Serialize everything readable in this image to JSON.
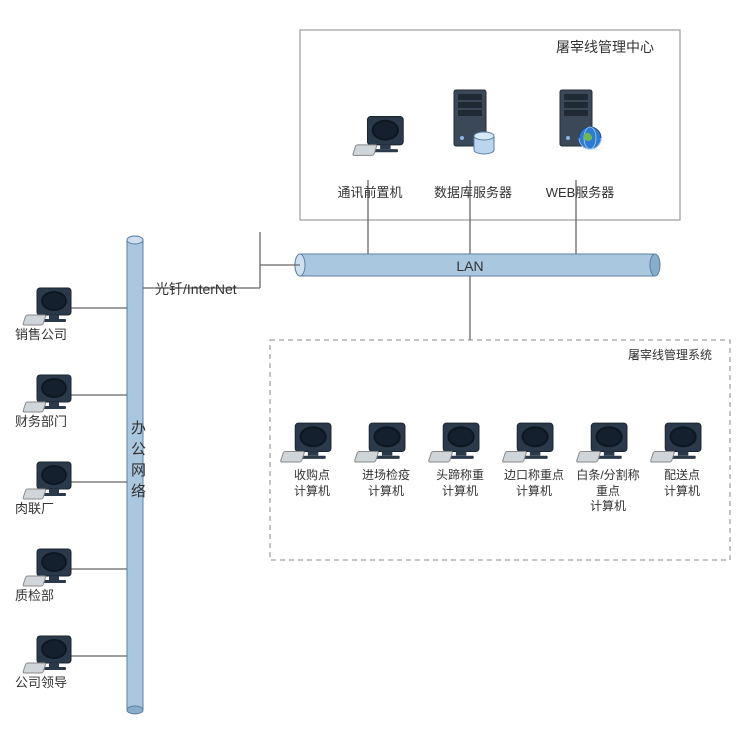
{
  "diagram": {
    "type": "network",
    "background_color": "#ffffff",
    "line_color": "#666666",
    "border_color": "#888888",
    "dash_pattern": "5,4",
    "fontsize_default": 13,
    "fontsize_small": 12,
    "fontsize_vertical": 15,
    "cylinder_fill": "#a9c8e0",
    "cylinder_stroke": "#5b7fa0",
    "monitor_fill": "#2b3a4a",
    "monitor_stroke": "#1a2530",
    "server_fill": "#3b4858",
    "server_stroke": "#222c36",
    "globe_fill": "#2e7bd1"
  },
  "management_center": {
    "title": "屠宰线管理中心",
    "nodes": [
      {
        "label": "通讯前置机",
        "type": "workstation"
      },
      {
        "label": "数据库服务器",
        "type": "server_db"
      },
      {
        "label": "WEB服务器",
        "type": "server_web"
      }
    ]
  },
  "lan_bar": {
    "label": "LAN"
  },
  "link_label": "光钎/InterNet",
  "office_network": {
    "label": "办公网络",
    "nodes": [
      {
        "label": "销售公司"
      },
      {
        "label": "财务部门"
      },
      {
        "label": "肉联厂"
      },
      {
        "label": "质检部"
      },
      {
        "label": "公司领导"
      }
    ]
  },
  "management_system": {
    "title": "屠宰线管理系统",
    "nodes": [
      {
        "label": "收购点\n计算机"
      },
      {
        "label": "进场检疫\n计算机"
      },
      {
        "label": "头蹄称重\n计算机"
      },
      {
        "label": "边口称重点\n计算机"
      },
      {
        "label": "白条/分割称重点\n计算机"
      },
      {
        "label": "配送点\n计算机"
      }
    ]
  }
}
